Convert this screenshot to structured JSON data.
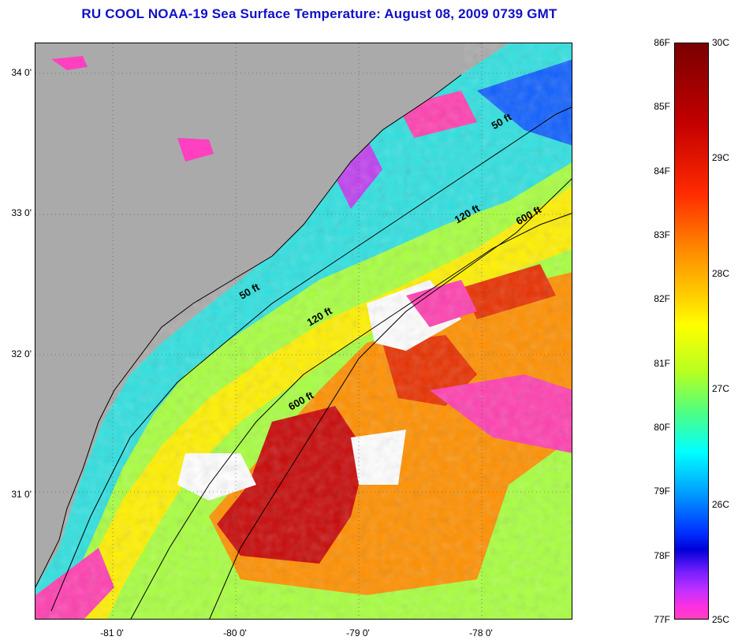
{
  "title": "RU COOL  NOAA-19  Sea Surface Temperature:  August 08, 2009 0739 GMT",
  "map": {
    "lat_ticks": [
      {
        "label": "34 0'",
        "value": 34.0
      },
      {
        "label": "33 0'",
        "value": 33.0
      },
      {
        "label": "32 0'",
        "value": 32.0
      },
      {
        "label": "31 0'",
        "value": 31.0
      }
    ],
    "lon_ticks": [
      {
        "label": "-81 0'",
        "value": -81.0
      },
      {
        "label": "-80 0'",
        "value": -80.0
      },
      {
        "label": "-79 0'",
        "value": -79.0
      },
      {
        "label": "-78 0'",
        "value": -78.0
      }
    ],
    "contour_labels": [
      {
        "text": "50 ft",
        "lon": -77.9,
        "lat": 33.6
      },
      {
        "text": "120 ft",
        "lon": -78.2,
        "lat": 32.93
      },
      {
        "text": "600 ft",
        "lon": -77.7,
        "lat": 32.92
      },
      {
        "text": "50 ft",
        "lon": -79.95,
        "lat": 32.39
      },
      {
        "text": "120 ft",
        "lon": -79.4,
        "lat": 32.2
      },
      {
        "text": "600 ft",
        "lon": -79.55,
        "lat": 31.6
      }
    ],
    "colors": {
      "land": "#aaaaaa",
      "frame": "#000000"
    }
  },
  "colorbar": {
    "fahrenheit": [
      "86F",
      "85F",
      "84F",
      "83F",
      "82F",
      "81F",
      "80F",
      "79F",
      "78F",
      "77F"
    ],
    "celsius": [
      "30C",
      "29C",
      "28C",
      "27C",
      "26C",
      "25C"
    ]
  }
}
